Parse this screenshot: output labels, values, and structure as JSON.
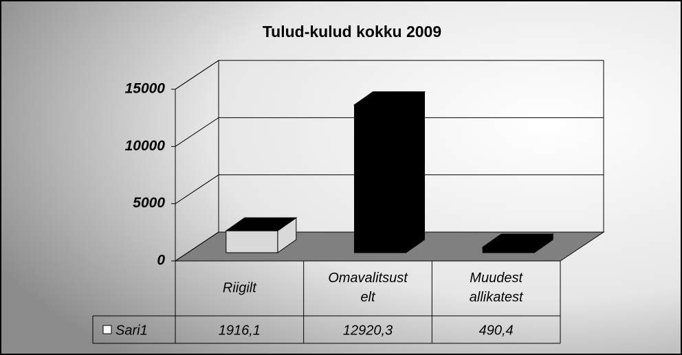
{
  "chart_data": {
    "type": "bar3d",
    "title": "Tulud-kulud kokku 2009",
    "categories": [
      "Riigilt",
      "Omavalitsust elt",
      "Muudest allikatest"
    ],
    "series": [
      {
        "name": "Sari1",
        "colors": [
          "#d9d9d9",
          "#000000",
          "#000000"
        ],
        "values": [
          1916.1,
          12920.3,
          490.4
        ],
        "value_labels": [
          "1916,1",
          "12920,3",
          "490,4"
        ]
      }
    ],
    "ylim": [
      0,
      15000
    ],
    "yticks": [
      0,
      5000,
      10000,
      15000
    ],
    "grid": true,
    "legend": "table"
  }
}
